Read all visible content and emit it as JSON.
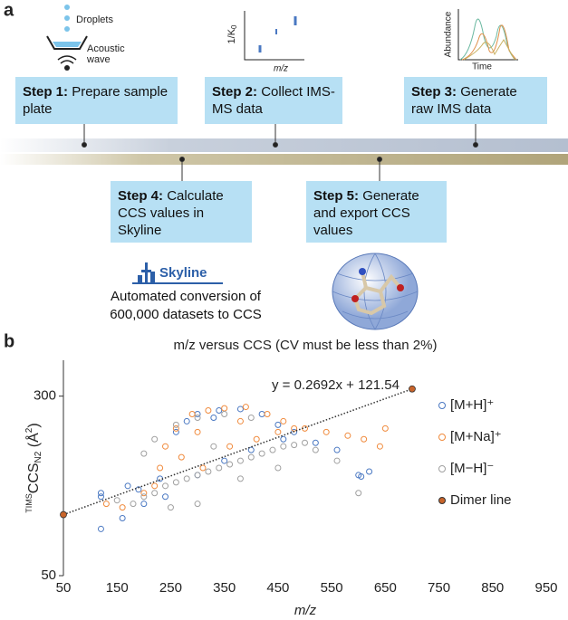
{
  "panel_a": {
    "label": "a",
    "steps": [
      {
        "label": "Step 1:",
        "text": "Prepare sample plate"
      },
      {
        "label": "Step 2:",
        "text": "Collect IMS-MS data"
      },
      {
        "label": "Step 3:",
        "text": "Generate raw IMS data"
      },
      {
        "label": "Step 4:",
        "text": "Calculate CCS values in Skyline"
      },
      {
        "label": "Step 5:",
        "text": "Generate and export CCS values"
      }
    ],
    "icons": {
      "droplets": "Droplets",
      "acoustic": "Acoustic wave",
      "ims_y": "1/K",
      "ims_y_sub": "0",
      "ims_x": "m/z",
      "abundance": "Abundance",
      "time": "Time",
      "skyline": "Skyline"
    },
    "caption": "Automated conversion of 600,000 datasets to CCS"
  },
  "chart_data": {
    "type": "scatter",
    "label": "b",
    "title": "m/z versus CCS (CV must be less than 2%)",
    "x_label": "m/z",
    "y_label": {
      "prefix": "TIMS",
      "main": "CCS",
      "sub": "N2",
      "open": " (Å",
      "sup": "2",
      "close": ")"
    },
    "annotation": "y = 0.2692x + 121.54",
    "xlim": [
      50,
      950
    ],
    "xticks": [
      50,
      150,
      250,
      350,
      450,
      550,
      650,
      750,
      850,
      950
    ],
    "ylim": [
      50,
      350
    ],
    "yticks": [
      50,
      300
    ],
    "legend": "right",
    "series": [
      {
        "name": "[M+H]⁺",
        "color": "#4a78c2",
        "x": [
          120,
          120,
          120,
          160,
          200,
          230,
          260,
          280,
          300,
          340,
          380,
          420,
          450,
          240,
          300,
          350,
          400,
          460,
          520,
          560,
          600,
          605,
          620,
          190,
          330,
          480,
          170
        ],
        "y": [
          165,
          160,
          115,
          130,
          150,
          185,
          250,
          265,
          275,
          280,
          282,
          275,
          260,
          160,
          190,
          210,
          225,
          240,
          235,
          225,
          190,
          188,
          195,
          170,
          270,
          250,
          175
        ]
      },
      {
        "name": "[M+Na]⁺",
        "color": "#f08a3c",
        "x": [
          130,
          200,
          240,
          260,
          290,
          320,
          350,
          390,
          430,
          460,
          480,
          230,
          270,
          310,
          360,
          410,
          450,
          500,
          540,
          580,
          610,
          640,
          650,
          160,
          380,
          300,
          220
        ],
        "y": [
          150,
          165,
          230,
          255,
          275,
          280,
          283,
          285,
          275,
          265,
          255,
          200,
          215,
          200,
          230,
          240,
          250,
          255,
          250,
          245,
          240,
          230,
          255,
          145,
          265,
          250,
          175
        ]
      },
      {
        "name": "[M−H]⁻",
        "color": "#a0a0a0",
        "x": [
          150,
          180,
          200,
          220,
          240,
          260,
          280,
          300,
          320,
          340,
          360,
          380,
          400,
          420,
          440,
          460,
          480,
          500,
          200,
          220,
          260,
          300,
          350,
          400,
          300,
          600,
          450,
          250,
          380,
          330,
          520,
          560
        ],
        "y": [
          155,
          150,
          160,
          165,
          175,
          180,
          185,
          190,
          195,
          200,
          205,
          210,
          215,
          220,
          225,
          230,
          232,
          235,
          220,
          240,
          260,
          270,
          275,
          270,
          150,
          165,
          200,
          145,
          185,
          230,
          225,
          210
        ]
      },
      {
        "name": "Dimer line",
        "color": "#c8642a",
        "x": [
          50,
          700
        ],
        "y": [
          135,
          310
        ]
      }
    ]
  }
}
